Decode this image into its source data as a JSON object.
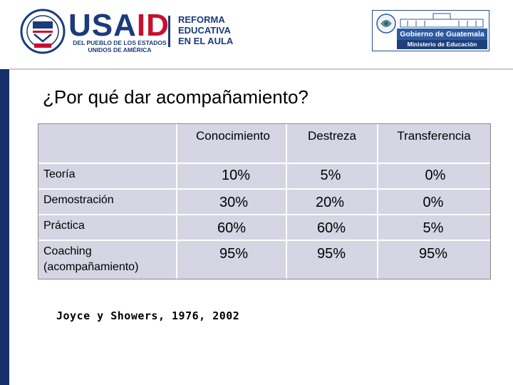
{
  "header": {
    "usaid_word_usa": "USA",
    "usaid_word_id": "ID",
    "usaid_tagline": "DEL PUEBLO DE LOS ESTADOS UNIDOS DE AMÉRICA",
    "program_line1": "REFORMA",
    "program_line2": "EDUCATIVA",
    "program_line3": "EN EL AULA",
    "gov_name": "Gobierno de Guatemala",
    "gov_ministry": "Ministerio de Educación"
  },
  "slide": {
    "title": "¿Por qué dar acompañamiento?",
    "citation": "Joyce y Showers, 1976, 2002"
  },
  "table": {
    "columns": [
      "Conocimiento",
      "Destreza",
      "Transferencia"
    ],
    "rows": [
      {
        "label": "Teoría",
        "values": [
          "10%",
          "5%",
          "0%"
        ]
      },
      {
        "label": "Demostración",
        "values": [
          "30%",
          "20%",
          "0%"
        ]
      },
      {
        "label": "Práctica",
        "values": [
          "60%",
          "60%",
          "5%"
        ]
      },
      {
        "label": "Coaching (acompañamiento)",
        "values": [
          "95%",
          "95%",
          "95%"
        ]
      }
    ]
  },
  "colors": {
    "brand_navy": "#1b3b7a",
    "brand_red": "#c8102e",
    "table_fill": "#d5d5e4",
    "left_bar": "#15306b"
  }
}
